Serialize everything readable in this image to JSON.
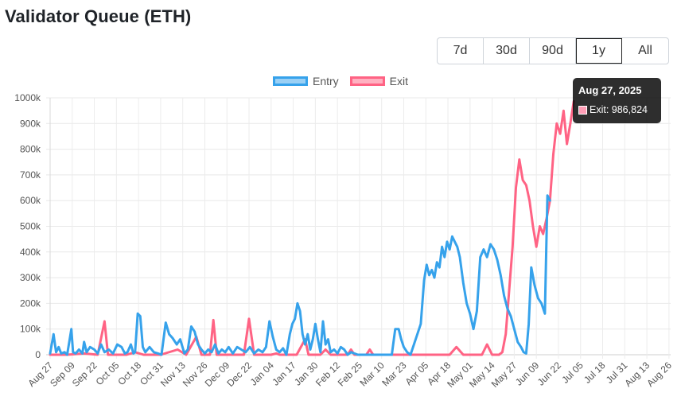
{
  "page_title": "Validator Queue (ETH)",
  "range_buttons": [
    {
      "label": "7d",
      "active": false
    },
    {
      "label": "30d",
      "active": false
    },
    {
      "label": "90d",
      "active": false
    },
    {
      "label": "1y",
      "active": true
    },
    {
      "label": "All",
      "active": false
    }
  ],
  "tooltip": {
    "title": "Aug 27, 2025",
    "label": "Exit: 986,824",
    "swatch_color": "#ff9eb6"
  },
  "chart_data": {
    "type": "line",
    "title": "Validator Queue (ETH)",
    "xlabel": "",
    "ylabel": "",
    "ylim": [
      0,
      1000000
    ],
    "yticks": [
      "0",
      "100k",
      "200k",
      "300k",
      "400k",
      "500k",
      "600k",
      "700k",
      "800k",
      "900k",
      "1000k"
    ],
    "x_tick_labels": [
      "Aug 27",
      "Sep 09",
      "Sep 22",
      "Oct 05",
      "Oct 18",
      "Oct 31",
      "Nov 13",
      "Nov 26",
      "Dec 09",
      "Dec 22",
      "Jan 04",
      "Jan 17",
      "Jan 30",
      "Feb 12",
      "Feb 25",
      "Mar 10",
      "Mar 23",
      "Apr 05",
      "Apr 18",
      "May 01",
      "May 14",
      "May 27",
      "Jun 09",
      "Jun 22",
      "Jul 05",
      "Jul 18",
      "Jul 31",
      "Aug 13",
      "Aug 26"
    ],
    "x_start": "Aug 27, 2024",
    "x_end": "Aug 27, 2025",
    "grid": true,
    "legend_position": "top-center",
    "series": [
      {
        "name": "Entry",
        "color": "#36a2eb",
        "fill": "#9ad0f5",
        "points": [
          [
            0,
            5000
          ],
          [
            4,
            80000
          ],
          [
            7,
            10000
          ],
          [
            10,
            30000
          ],
          [
            13,
            5000
          ],
          [
            17,
            10000
          ],
          [
            20,
            0
          ],
          [
            23,
            60000
          ],
          [
            25,
            100000
          ],
          [
            27,
            10000
          ],
          [
            30,
            5000
          ],
          [
            34,
            20000
          ],
          [
            38,
            5000
          ],
          [
            40,
            50000
          ],
          [
            43,
            10000
          ],
          [
            47,
            30000
          ],
          [
            52,
            20000
          ],
          [
            56,
            5000
          ],
          [
            60,
            40000
          ],
          [
            64,
            10000
          ],
          [
            69,
            20000
          ],
          [
            74,
            5000
          ],
          [
            79,
            40000
          ],
          [
            84,
            30000
          ],
          [
            88,
            5000
          ],
          [
            91,
            10000
          ],
          [
            95,
            40000
          ],
          [
            98,
            5000
          ],
          [
            100,
            10000
          ],
          [
            103,
            160000
          ],
          [
            106,
            150000
          ],
          [
            109,
            30000
          ],
          [
            112,
            10000
          ],
          [
            117,
            30000
          ],
          [
            122,
            10000
          ],
          [
            127,
            5000
          ],
          [
            131,
            0
          ],
          [
            136,
            125000
          ],
          [
            140,
            80000
          ],
          [
            144,
            65000
          ],
          [
            149,
            40000
          ],
          [
            153,
            60000
          ],
          [
            158,
            5000
          ],
          [
            162,
            20000
          ],
          [
            166,
            110000
          ],
          [
            170,
            90000
          ],
          [
            174,
            40000
          ],
          [
            178,
            20000
          ],
          [
            182,
            5000
          ],
          [
            186,
            20000
          ],
          [
            190,
            10000
          ],
          [
            194,
            40000
          ],
          [
            198,
            5000
          ],
          [
            202,
            20000
          ],
          [
            206,
            10000
          ],
          [
            210,
            30000
          ],
          [
            215,
            5000
          ],
          [
            220,
            30000
          ],
          [
            225,
            20000
          ],
          [
            230,
            10000
          ],
          [
            235,
            30000
          ],
          [
            240,
            5000
          ],
          [
            245,
            20000
          ],
          [
            250,
            10000
          ],
          [
            254,
            30000
          ],
          [
            258,
            130000
          ],
          [
            262,
            70000
          ],
          [
            266,
            20000
          ],
          [
            270,
            10000
          ],
          [
            274,
            25000
          ],
          [
            278,
            0
          ],
          [
            282,
            80000
          ],
          [
            285,
            120000
          ],
          [
            288,
            140000
          ],
          [
            291,
            200000
          ],
          [
            294,
            170000
          ],
          [
            297,
            80000
          ],
          [
            300,
            40000
          ],
          [
            303,
            80000
          ],
          [
            306,
            20000
          ],
          [
            309,
            60000
          ],
          [
            312,
            120000
          ],
          [
            315,
            60000
          ],
          [
            318,
            10000
          ],
          [
            321,
            130000
          ],
          [
            324,
            40000
          ],
          [
            327,
            60000
          ],
          [
            330,
            10000
          ],
          [
            334,
            20000
          ],
          [
            338,
            5000
          ],
          [
            342,
            30000
          ],
          [
            346,
            20000
          ],
          [
            350,
            0
          ],
          [
            354,
            10000
          ],
          [
            358,
            5000
          ],
          [
            362,
            0
          ],
          [
            366,
            0
          ],
          [
            370,
            0
          ],
          [
            374,
            0
          ],
          [
            378,
            0
          ],
          [
            382,
            0
          ],
          [
            386,
            0
          ],
          [
            390,
            0
          ],
          [
            394,
            0
          ],
          [
            398,
            0
          ],
          [
            402,
            0
          ],
          [
            406,
            100000
          ],
          [
            410,
            100000
          ],
          [
            413,
            60000
          ],
          [
            416,
            30000
          ],
          [
            420,
            10000
          ],
          [
            424,
            0
          ],
          [
            428,
            40000
          ],
          [
            432,
            80000
          ],
          [
            436,
            120000
          ],
          [
            440,
            290000
          ],
          [
            443,
            350000
          ],
          [
            446,
            310000
          ],
          [
            449,
            330000
          ],
          [
            452,
            300000
          ],
          [
            455,
            360000
          ],
          [
            458,
            340000
          ],
          [
            461,
            420000
          ],
          [
            464,
            380000
          ],
          [
            467,
            440000
          ],
          [
            470,
            410000
          ],
          [
            473,
            460000
          ],
          [
            476,
            440000
          ],
          [
            479,
            420000
          ],
          [
            482,
            380000
          ],
          [
            486,
            280000
          ],
          [
            490,
            200000
          ],
          [
            494,
            160000
          ],
          [
            498,
            100000
          ],
          [
            502,
            170000
          ],
          [
            506,
            380000
          ],
          [
            510,
            410000
          ],
          [
            514,
            380000
          ],
          [
            518,
            430000
          ],
          [
            522,
            410000
          ],
          [
            526,
            370000
          ],
          [
            530,
            310000
          ],
          [
            534,
            230000
          ],
          [
            538,
            180000
          ],
          [
            542,
            150000
          ],
          [
            546,
            100000
          ],
          [
            550,
            50000
          ],
          [
            554,
            30000
          ],
          [
            557,
            10000
          ],
          [
            560,
            5000
          ],
          [
            563,
            120000
          ],
          [
            566,
            340000
          ],
          [
            570,
            270000
          ],
          [
            574,
            220000
          ],
          [
            578,
            200000
          ],
          [
            582,
            160000
          ],
          [
            585,
            620000
          ],
          [
            588,
            600000
          ]
        ]
      },
      {
        "name": "Exit",
        "color": "#ff6384",
        "fill": "#ffb1c1",
        "points": [
          [
            0,
            0
          ],
          [
            20,
            0
          ],
          [
            40,
            5000
          ],
          [
            56,
            0
          ],
          [
            64,
            130000
          ],
          [
            68,
            0
          ],
          [
            90,
            0
          ],
          [
            100,
            10000
          ],
          [
            110,
            0
          ],
          [
            130,
            0
          ],
          [
            150,
            20000
          ],
          [
            160,
            0
          ],
          [
            172,
            70000
          ],
          [
            178,
            0
          ],
          [
            188,
            0
          ],
          [
            192,
            135000
          ],
          [
            196,
            0
          ],
          [
            210,
            0
          ],
          [
            228,
            0
          ],
          [
            234,
            140000
          ],
          [
            240,
            0
          ],
          [
            260,
            0
          ],
          [
            266,
            5000
          ],
          [
            270,
            0
          ],
          [
            290,
            0
          ],
          [
            300,
            60000
          ],
          [
            304,
            0
          ],
          [
            318,
            0
          ],
          [
            324,
            20000
          ],
          [
            330,
            0
          ],
          [
            350,
            0
          ],
          [
            354,
            20000
          ],
          [
            358,
            0
          ],
          [
            372,
            0
          ],
          [
            376,
            20000
          ],
          [
            380,
            0
          ],
          [
            400,
            0
          ],
          [
            420,
            0
          ],
          [
            440,
            0
          ],
          [
            460,
            0
          ],
          [
            470,
            0
          ],
          [
            478,
            30000
          ],
          [
            486,
            0
          ],
          [
            500,
            0
          ],
          [
            508,
            0
          ],
          [
            514,
            40000
          ],
          [
            520,
            0
          ],
          [
            528,
            0
          ],
          [
            532,
            10000
          ],
          [
            536,
            80000
          ],
          [
            540,
            250000
          ],
          [
            544,
            420000
          ],
          [
            548,
            650000
          ],
          [
            552,
            760000
          ],
          [
            556,
            680000
          ],
          [
            560,
            660000
          ],
          [
            564,
            600000
          ],
          [
            568,
            500000
          ],
          [
            572,
            420000
          ],
          [
            576,
            500000
          ],
          [
            580,
            470000
          ],
          [
            584,
            530000
          ],
          [
            588,
            600000
          ],
          [
            592,
            780000
          ],
          [
            596,
            900000
          ],
          [
            600,
            860000
          ],
          [
            604,
            950000
          ],
          [
            608,
            820000
          ],
          [
            612,
            900000
          ],
          [
            616,
            986824
          ]
        ]
      }
    ]
  }
}
